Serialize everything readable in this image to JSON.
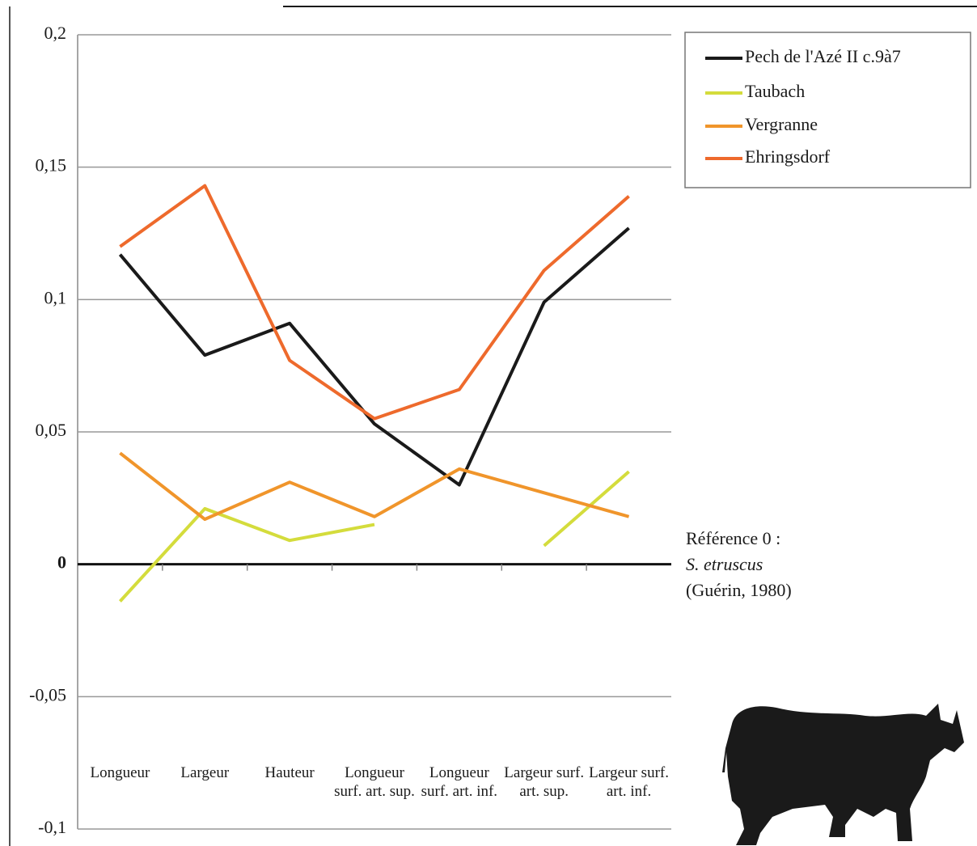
{
  "chart_data": {
    "type": "line",
    "categories": [
      "Longueur",
      "Largeur",
      "Hauteur",
      "Longueur surf. art. sup.",
      "Longueur surf. art. inf.",
      "Largeur surf. art. sup.",
      "Largeur surf. art. inf."
    ],
    "series": [
      {
        "name": "Pech de l'Azé II c.9à7",
        "color": "#1a1a1a",
        "values": [
          0.117,
          0.079,
          0.091,
          0.053,
          0.03,
          0.099,
          0.127
        ]
      },
      {
        "name": "Taubach",
        "color": "#d4dc3c",
        "values": [
          -0.014,
          0.021,
          0.009,
          0.015,
          null,
          0.007,
          0.035
        ]
      },
      {
        "name": "Vergranne",
        "color": "#f0952b",
        "values": [
          0.042,
          0.017,
          0.031,
          0.018,
          0.036,
          0.027,
          0.018
        ]
      },
      {
        "name": "Ehringsdorf",
        "color": "#ee6a2c",
        "values": [
          0.12,
          0.143,
          0.077,
          0.055,
          0.066,
          0.111,
          0.139
        ]
      }
    ],
    "ylim": [
      -0.1,
      0.2
    ],
    "yticks": [
      {
        "value": -0.1,
        "label": "-0,1"
      },
      {
        "value": -0.05,
        "label": "-0,05"
      },
      0,
      {
        "value": 0.05,
        "label": "0,05"
      },
      {
        "value": 0.1,
        "label": "0,1"
      },
      {
        "value": 0.15,
        "label": "0,15"
      },
      {
        "value": 0.2,
        "label": "0,2"
      }
    ],
    "grid": true,
    "legend": "top-right",
    "annotation": {
      "line1": "Référence 0 :",
      "line2": "S. etruscus",
      "line3": "(Guérin, 1980)"
    }
  }
}
